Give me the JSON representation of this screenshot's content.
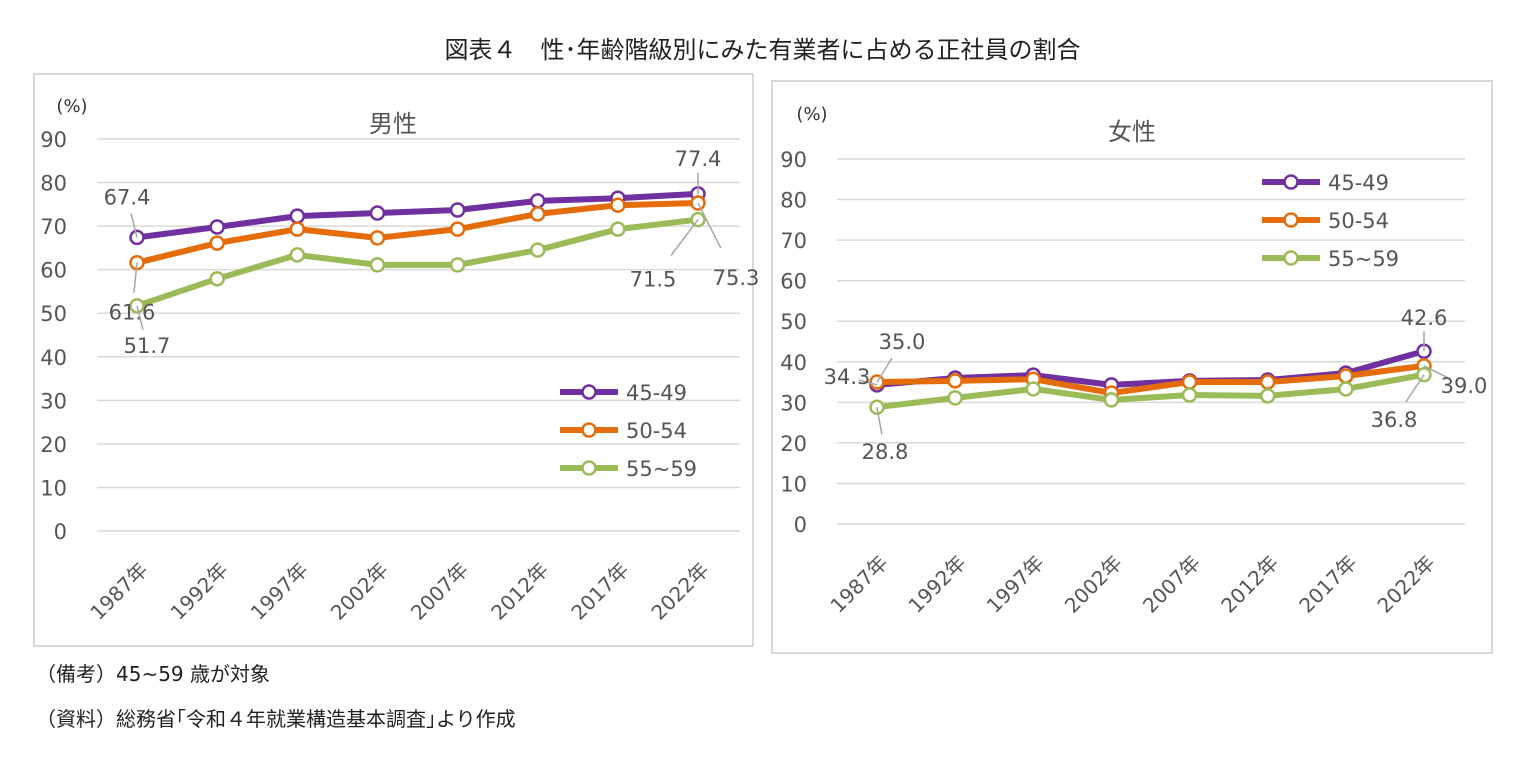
{
  "title": "図表４　性･年齢階級別にみた有業者に占める正社員の割合",
  "notes": [
    "（備考）45~59 歳が対象",
    "（資料）総務省｢令和４年就業構造基本調査｣より作成"
  ],
  "chart_data": [
    {
      "type": "line",
      "title": "男性",
      "ylabel": "(%)",
      "ylim": [
        0,
        90
      ],
      "yticks": [
        0,
        10,
        20,
        30,
        40,
        50,
        60,
        70,
        80,
        90
      ],
      "grid": true,
      "legend": "bottom-right",
      "categories": [
        "1987年",
        "1992年",
        "1997年",
        "2002年",
        "2007年",
        "2012年",
        "2017年",
        "2022年"
      ],
      "series": [
        {
          "name": "45-49",
          "color": "#7030a0",
          "values": [
            67.4,
            69.8,
            72.3,
            73.0,
            73.7,
            75.8,
            76.4,
            77.4
          ]
        },
        {
          "name": "50-54",
          "color": "#e46c0a",
          "values": [
            61.6,
            66.1,
            69.3,
            67.3,
            69.3,
            72.8,
            74.8,
            75.3
          ]
        },
        {
          "name": "55~59",
          "color": "#9bbb59",
          "values": [
            51.7,
            57.9,
            63.4,
            61.1,
            61.1,
            64.5,
            69.3,
            71.5
          ]
        }
      ],
      "data_labels": [
        {
          "series": 0,
          "index": 0,
          "text": "67.4"
        },
        {
          "series": 1,
          "index": 0,
          "text": "61.6"
        },
        {
          "series": 2,
          "index": 0,
          "text": "51.7"
        },
        {
          "series": 0,
          "index": 7,
          "text": "77.4"
        },
        {
          "series": 1,
          "index": 7,
          "text": "75.3"
        },
        {
          "series": 2,
          "index": 7,
          "text": "71.5"
        }
      ]
    },
    {
      "type": "line",
      "title": "女性",
      "ylabel": "(%)",
      "ylim": [
        0,
        90
      ],
      "yticks": [
        0,
        10,
        20,
        30,
        40,
        50,
        60,
        70,
        80,
        90
      ],
      "grid": true,
      "legend": "top-right",
      "categories": [
        "1987年",
        "1992年",
        "1997年",
        "2002年",
        "2007年",
        "2012年",
        "2017年",
        "2022年"
      ],
      "series": [
        {
          "name": "45-49",
          "color": "#7030a0",
          "values": [
            34.3,
            36.0,
            36.7,
            34.3,
            35.3,
            35.5,
            37.2,
            42.6
          ]
        },
        {
          "name": "50-54",
          "color": "#e46c0a",
          "values": [
            35.0,
            35.3,
            35.7,
            32.3,
            35.0,
            35.0,
            36.5,
            39.0
          ]
        },
        {
          "name": "55~59",
          "color": "#9bbb59",
          "values": [
            28.8,
            31.1,
            33.3,
            30.6,
            31.8,
            31.6,
            33.3,
            36.8
          ]
        }
      ],
      "data_labels": [
        {
          "series": 0,
          "index": 0,
          "text": "34.3"
        },
        {
          "series": 1,
          "index": 0,
          "text": "35.0"
        },
        {
          "series": 2,
          "index": 0,
          "text": "28.8"
        },
        {
          "series": 0,
          "index": 7,
          "text": "42.6"
        },
        {
          "series": 1,
          "index": 7,
          "text": "39.0"
        },
        {
          "series": 2,
          "index": 7,
          "text": "36.8"
        }
      ]
    }
  ]
}
